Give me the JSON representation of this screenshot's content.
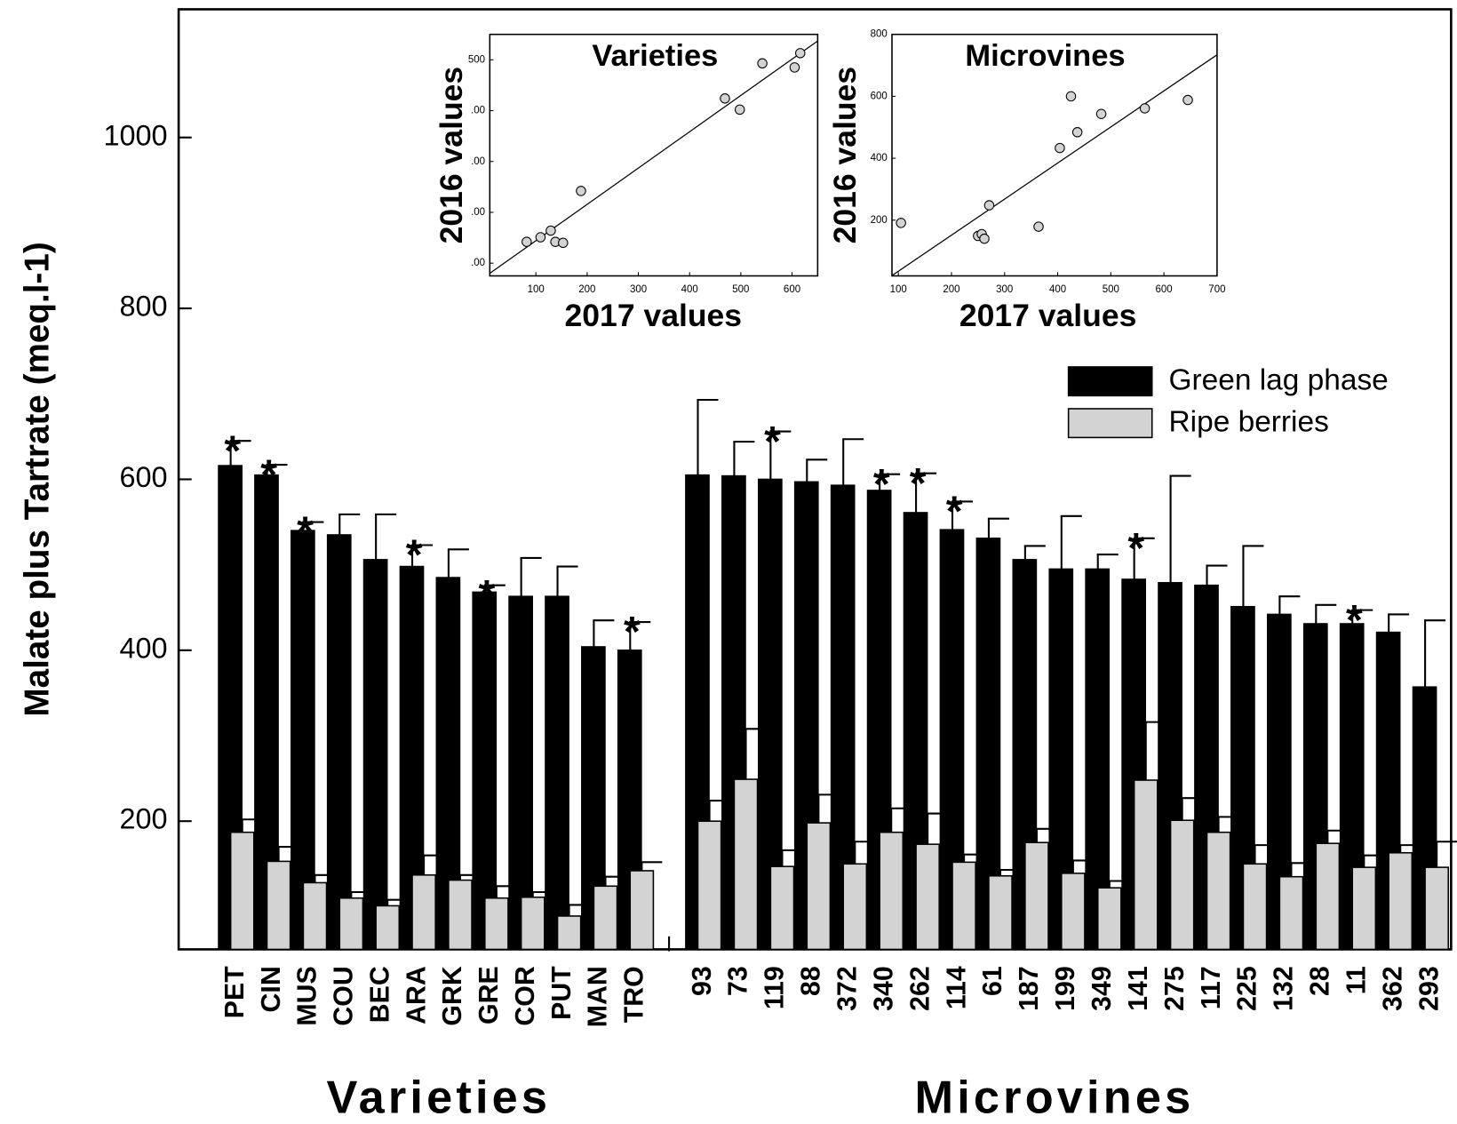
{
  "chart_data": [
    {
      "type": "bar",
      "xlabel": "Varieties",
      "ylabel": "Malate plus Tartrate (meq.l-1)",
      "ylim": [
        50,
        1150
      ],
      "yticks": [
        200,
        400,
        600,
        800,
        1000
      ],
      "categories": [
        "PET",
        "CIN",
        "MUS",
        "COU",
        "BEC",
        "ARA",
        "GRK",
        "GRE",
        "COR",
        "PUT",
        "MAN",
        "TRO"
      ],
      "series": [
        {
          "color": "#000000",
          "values": [
            616,
            605,
            540,
            535,
            506,
            498,
            485,
            468,
            463,
            463,
            404,
            400
          ],
          "errors": [
            29,
            12,
            10,
            24,
            53,
            25,
            33,
            8,
            45,
            35,
            31,
            33
          ]
        },
        {
          "color": "#d3d3d3",
          "values": [
            187,
            153,
            128,
            110,
            101,
            137,
            131,
            110,
            111,
            89,
            124,
            142
          ],
          "errors": [
            15,
            17,
            9,
            7,
            7,
            23,
            6,
            14,
            6,
            13,
            11,
            10
          ]
        }
      ],
      "marker": "*",
      "significant": [
        true,
        true,
        true,
        false,
        false,
        true,
        false,
        true,
        false,
        false,
        false,
        true
      ]
    },
    {
      "type": "bar",
      "xlabel": "Microvines",
      "ylim": [
        50,
        1150
      ],
      "legend": "upper right",
      "categories": [
        "93",
        "73",
        "119",
        "88",
        "372",
        "340",
        "262",
        "114",
        "61",
        "187",
        "199",
        "349",
        "141",
        "275",
        "117",
        "225",
        "132",
        "28",
        "11",
        "362",
        "293"
      ],
      "series": [
        {
          "name": "Green lag phase",
          "color": "#000000",
          "values": [
            605,
            604,
            600,
            597,
            593,
            587,
            561,
            541,
            531,
            506,
            495,
            495,
            483,
            479,
            476,
            451,
            442,
            431,
            431,
            421,
            357
          ],
          "errors": [
            88,
            40,
            56,
            26,
            54,
            19,
            46,
            33,
            23,
            16,
            62,
            17,
            48,
            125,
            23,
            71,
            21,
            22,
            16,
            21,
            78
          ]
        },
        {
          "name": "Ripe berries",
          "color": "#d3d3d3",
          "values": [
            200,
            249,
            147,
            198,
            150,
            187,
            173,
            152,
            136,
            175,
            139,
            122,
            248,
            201,
            187,
            150,
            135,
            174,
            146,
            163,
            146
          ],
          "errors": [
            24,
            59,
            19,
            33,
            26,
            28,
            36,
            9,
            7,
            16,
            15,
            8,
            68,
            26,
            18,
            22,
            16,
            15,
            14,
            9,
            30
          ]
        }
      ],
      "marker": "*",
      "significant": [
        false,
        false,
        true,
        false,
        false,
        true,
        true,
        true,
        false,
        false,
        false,
        false,
        true,
        false,
        false,
        false,
        false,
        false,
        true,
        false,
        false
      ]
    },
    {
      "type": "scatter",
      "title": "Varieties",
      "xlabel": "2017 values",
      "ylabel": "2016 values",
      "xlim": [
        10,
        650
      ],
      "ylim": [
        75,
        550
      ],
      "xticks": [
        100,
        200,
        300,
        400,
        500,
        600
      ],
      "yticks": [
        500,
        {
          "value": 400,
          "label": ".00"
        },
        {
          "value": 300,
          "label": ".00"
        },
        {
          "value": 200,
          "label": ".00"
        },
        {
          "value": 100,
          "label": ".00"
        }
      ],
      "color": "#d3d3d3",
      "x": [
        82,
        109,
        129,
        138,
        153,
        188,
        469,
        498,
        542,
        605,
        616
      ],
      "y": [
        142,
        151,
        164,
        142,
        140,
        242,
        424,
        402,
        493,
        485,
        513
      ],
      "fit_line": {
        "x": [
          10,
          650
        ],
        "y": [
          80,
          537
        ]
      }
    },
    {
      "type": "scatter",
      "title": "Microvines",
      "xlabel": "2017 values",
      "ylabel": "2016 values",
      "xlim": [
        88,
        700
      ],
      "ylim": [
        20,
        800
      ],
      "xticks": [
        100,
        200,
        300,
        400,
        500,
        600,
        700
      ],
      "yticks": [
        200,
        400,
        600,
        800
      ],
      "color": "#d3d3d3",
      "x": [
        105,
        250,
        257,
        262,
        271,
        364,
        404,
        425,
        437,
        482,
        564,
        645
      ],
      "y": [
        191,
        149,
        155,
        140,
        248,
        179,
        433,
        600,
        484,
        543,
        561,
        588
      ],
      "fit_line": {
        "x": [
          88,
          700
        ],
        "y": [
          21,
          734
        ]
      }
    }
  ]
}
